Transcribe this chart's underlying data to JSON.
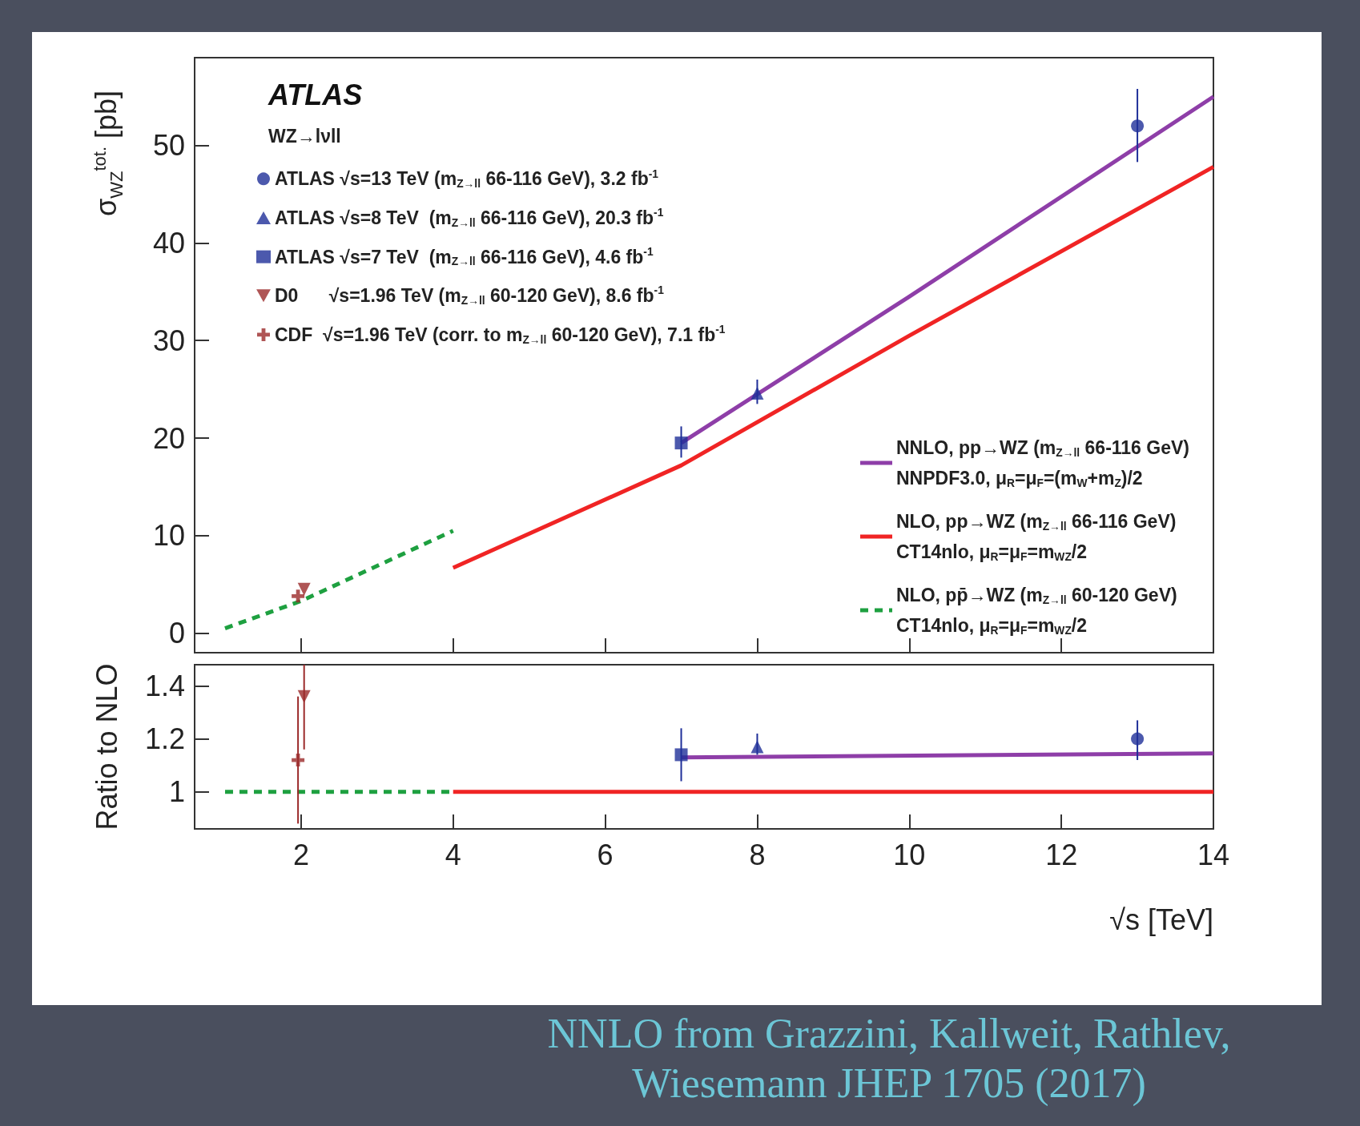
{
  "chart_data": [
    {
      "type": "scatter",
      "ylabel": "σ$_{WZ}$$^{tot.}$ [pb]",
      "xlim": [
        0.6,
        14
      ],
      "xticks": [
        2,
        4,
        6,
        8,
        10,
        12,
        14
      ],
      "ylim": [
        -2,
        59
      ],
      "yticks": [
        0,
        10,
        20,
        30,
        40,
        50
      ],
      "tick_labels": "y",
      "grid": false,
      "legend": "top left",
      "annotations": [
        "ATLAS",
        "WZ→lνll",
        "NNLO from Grazzini, Kallweit, Rathlev, Wiesemann JHEP 1705 (2017)"
      ],
      "series": [
        {
          "name": "ATLAS √s=13 TeV (m$_{Z→ll}$ 66-116 GeV), 3.2 fb$^{-1}$",
          "color": "#1f2f99",
          "marker": "circle",
          "x": [
            13
          ],
          "values": [
            52
          ],
          "errors": [
            [
              48.3,
              55.8
            ]
          ]
        },
        {
          "name": "ATLAS √s=8 TeV  (m$_{Z→ll}$ 66-116 GeV), 20.3 fb$^{-1}$",
          "color": "#1f2f99",
          "marker": "triangle",
          "x": [
            8
          ],
          "values": [
            24.6
          ],
          "errors": [
            [
              23.5,
              26
            ]
          ]
        },
        {
          "name": "ATLAS √s=7 TeV  (m$_{Z→ll}$ 66-116 GeV), 4.6 fb$^{-1}$",
          "color": "#1f2f99",
          "marker": "square",
          "x": [
            7
          ],
          "values": [
            19.5
          ],
          "errors": [
            [
              18,
              21.2
            ]
          ]
        },
        {
          "name": "D0      √s=1.96 TeV (m$_{Z→ll}$ 60-120 GeV), 8.6 fb$^{-1}$",
          "color": "#9b2a2a",
          "marker": "triangle-down",
          "x": [
            2.04
          ],
          "values": [
            4.5
          ]
        },
        {
          "name": "CDF  √s=1.96 TeV (corr. to m$_{Z→ll}$ 60-120 GeV), 7.1 fb$^{-1}$",
          "color": "#9b2a2a",
          "marker": "cross",
          "x": [
            1.96
          ],
          "values": [
            3.8
          ]
        },
        {
          "type": "line",
          "name": "NNLO, pp→WZ (m$_{Z→ll}$ 66-116 GeV)\nNNPDF3.0, μ$_{R}$=μ$_{F}$=(m$_{W}$+m$_{Z}$)/2",
          "color": "#8e3ea8",
          "line_style": "solid",
          "x": [
            7,
            10,
            14
          ],
          "values": [
            19.5,
            34.5,
            55
          ]
        },
        {
          "type": "line",
          "name": "NLO, pp→WZ (m$_{Z→ll}$ 66-116 GeV)\nCT14nlo, μ$_{R}$=μ$_{F}$=m$_{WZ}$/2",
          "color": "#f02424",
          "line_style": "solid",
          "x": [
            4,
            7,
            10,
            14
          ],
          "values": [
            6.7,
            17.2,
            30.5,
            47.8
          ]
        },
        {
          "type": "line",
          "name": "NLO, pp̄→WZ (m$_{Z→ll}$ 60-120 GeV)\nCT14nlo, μ$_{R}$=μ$_{F}$=m$_{WZ}$/2",
          "color": "#1ea040",
          "line_style": "dashed",
          "x": [
            1,
            2,
            4
          ],
          "values": [
            0.5,
            3.3,
            10.5
          ]
        }
      ]
    },
    {
      "type": "scatter",
      "xlabel": "√s [TeV]",
      "ylabel": "Ratio to NLO",
      "xlim": [
        0.6,
        14
      ],
      "xticks": [
        2,
        4,
        6,
        8,
        10,
        12,
        14
      ],
      "ylim": [
        0.86,
        1.48
      ],
      "yticks": [
        1,
        1.2,
        1.4
      ],
      "grid": false,
      "series": [
        {
          "color": "#1f2f99",
          "marker": "circle",
          "x": [
            13
          ],
          "values": [
            1.2
          ],
          "errors": [
            [
              1.12,
              1.27
            ]
          ]
        },
        {
          "color": "#1f2f99",
          "marker": "triangle",
          "x": [
            8
          ],
          "values": [
            1.17
          ],
          "errors": [
            [
              1.14,
              1.22
            ]
          ]
        },
        {
          "color": "#1f2f99",
          "marker": "square",
          "x": [
            7
          ],
          "values": [
            1.14
          ],
          "errors": [
            [
              1.04,
              1.24
            ]
          ]
        },
        {
          "color": "#9b2a2a",
          "marker": "triangle-down",
          "x": [
            2.04
          ],
          "values": [
            1.36
          ],
          "errors": [
            [
              1.16,
              1.48
            ]
          ]
        },
        {
          "color": "#9b2a2a",
          "marker": "cross",
          "x": [
            1.96
          ],
          "values": [
            1.12
          ],
          "errors": [
            [
              0.88,
              1.36
            ]
          ]
        },
        {
          "type": "line",
          "color": "#8e3ea8",
          "line_style": "solid",
          "x": [
            7,
            14
          ],
          "values": [
            1.13,
            1.145
          ]
        },
        {
          "type": "line",
          "color": "#f02424",
          "line_style": "solid",
          "x": [
            4,
            14
          ],
          "values": [
            1,
            1
          ]
        },
        {
          "type": "line",
          "color": "#1ea040",
          "line_style": "dashed",
          "x": [
            1,
            4
          ],
          "values": [
            1,
            1
          ]
        }
      ]
    }
  ]
}
